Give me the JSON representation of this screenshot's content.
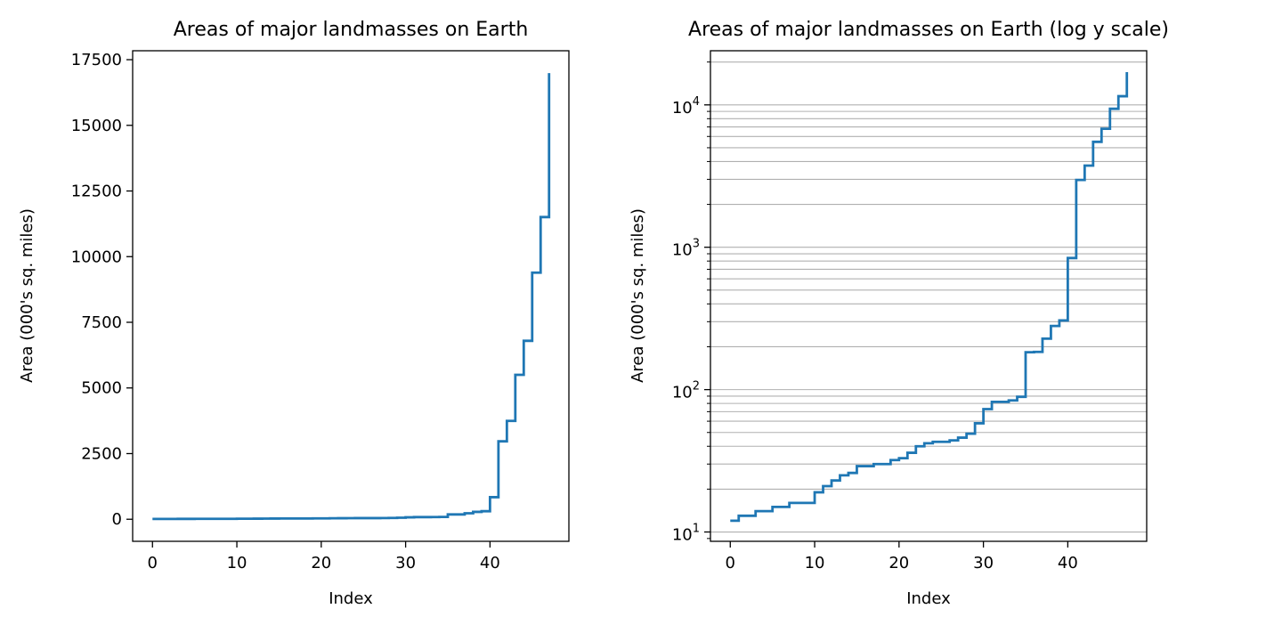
{
  "chart_data": [
    {
      "type": "line",
      "drawstyle": "steps-post",
      "title": "Areas of major landmasses on Earth",
      "xlabel": "Index",
      "ylabel": "Area (000's sq. miles)",
      "yscale": "linear",
      "grid": false,
      "xlim": [
        -2.35,
        49.35
      ],
      "ylim": [
        -840,
        17840
      ],
      "xticks": [
        0,
        10,
        20,
        30,
        40
      ],
      "xtick_labels": [
        "0",
        "10",
        "20",
        "30",
        "40"
      ],
      "yticks": [
        0,
        2500,
        5000,
        7500,
        10000,
        12500,
        15000,
        17500
      ],
      "ytick_labels": [
        "0",
        "2500",
        "5000",
        "7500",
        "10000",
        "12500",
        "15000",
        "17500"
      ],
      "color": "#1f77b4",
      "x": [
        0,
        1,
        2,
        3,
        4,
        5,
        6,
        7,
        8,
        9,
        10,
        11,
        12,
        13,
        14,
        15,
        16,
        17,
        18,
        19,
        20,
        21,
        22,
        23,
        24,
        25,
        26,
        27,
        28,
        29,
        30,
        31,
        32,
        33,
        34,
        35,
        36,
        37,
        38,
        39,
        40,
        41,
        42,
        43,
        44,
        45,
        46,
        47
      ],
      "y": [
        12,
        13,
        13,
        14,
        14,
        15,
        15,
        16,
        16,
        16,
        19,
        21,
        23,
        25,
        26,
        29,
        29,
        30,
        30,
        32,
        33,
        36,
        40,
        42,
        43,
        43,
        44,
        46,
        49,
        58,
        73,
        82,
        82,
        84,
        89,
        183,
        184,
        228,
        280,
        306,
        840,
        2968,
        3745,
        5500,
        6795,
        9390,
        11506,
        16988
      ]
    },
    {
      "type": "line",
      "drawstyle": "steps-post",
      "title": "Areas of major landmasses on Earth (log y scale)",
      "xlabel": "Index",
      "ylabel": "Area (000's sq. miles)",
      "yscale": "log",
      "grid": true,
      "grid_which": "minor",
      "grid_axis": "y",
      "xlim": [
        -2.35,
        49.35
      ],
      "ylim": [
        8.6,
        24000
      ],
      "xticks": [
        0,
        10,
        20,
        30,
        40
      ],
      "xtick_labels": [
        "0",
        "10",
        "20",
        "30",
        "40"
      ],
      "yticks_major": [
        10,
        100,
        1000,
        10000
      ],
      "ytick_labels": [
        {
          "base": "10",
          "exp": "1"
        },
        {
          "base": "10",
          "exp": "2"
        },
        {
          "base": "10",
          "exp": "3"
        },
        {
          "base": "10",
          "exp": "4"
        }
      ],
      "color": "#1f77b4",
      "x": [
        0,
        1,
        2,
        3,
        4,
        5,
        6,
        7,
        8,
        9,
        10,
        11,
        12,
        13,
        14,
        15,
        16,
        17,
        18,
        19,
        20,
        21,
        22,
        23,
        24,
        25,
        26,
        27,
        28,
        29,
        30,
        31,
        32,
        33,
        34,
        35,
        36,
        37,
        38,
        39,
        40,
        41,
        42,
        43,
        44,
        45,
        46,
        47
      ],
      "y": [
        12,
        13,
        13,
        14,
        14,
        15,
        15,
        16,
        16,
        16,
        19,
        21,
        23,
        25,
        26,
        29,
        29,
        30,
        30,
        32,
        33,
        36,
        40,
        42,
        43,
        43,
        44,
        46,
        49,
        58,
        73,
        82,
        82,
        84,
        89,
        183,
        184,
        228,
        280,
        306,
        840,
        2968,
        3745,
        5500,
        6795,
        9390,
        11506,
        16988
      ]
    }
  ]
}
